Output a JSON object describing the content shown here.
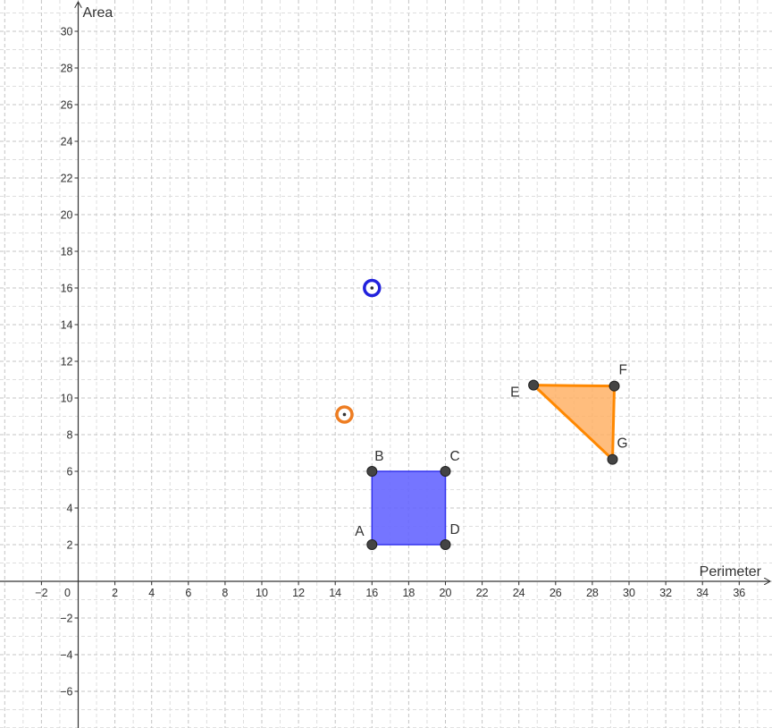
{
  "axes": {
    "x_title": "Perimeter",
    "y_title": "Area",
    "x_range": [
      -4,
      38
    ],
    "y_range": [
      -8,
      31
    ],
    "x_tick_labels": [
      {
        "value": -2,
        "text": "−2"
      },
      {
        "value": 0,
        "text": "0"
      },
      {
        "value": 2,
        "text": "2"
      },
      {
        "value": 4,
        "text": "4"
      },
      {
        "value": 6,
        "text": "6"
      },
      {
        "value": 8,
        "text": "8"
      },
      {
        "value": 10,
        "text": "10"
      },
      {
        "value": 12,
        "text": "12"
      },
      {
        "value": 14,
        "text": "14"
      },
      {
        "value": 16,
        "text": "16"
      },
      {
        "value": 18,
        "text": "18"
      },
      {
        "value": 20,
        "text": "20"
      },
      {
        "value": 22,
        "text": "22"
      },
      {
        "value": 24,
        "text": "24"
      },
      {
        "value": 26,
        "text": "26"
      },
      {
        "value": 28,
        "text": "28"
      },
      {
        "value": 30,
        "text": "30"
      },
      {
        "value": 32,
        "text": "32"
      },
      {
        "value": 34,
        "text": "34"
      },
      {
        "value": 36,
        "text": "36"
      }
    ],
    "y_tick_labels": [
      {
        "value": 30,
        "text": "30"
      },
      {
        "value": 28,
        "text": "28"
      },
      {
        "value": 26,
        "text": "26"
      },
      {
        "value": 24,
        "text": "24"
      },
      {
        "value": 22,
        "text": "22"
      },
      {
        "value": 20,
        "text": "20"
      },
      {
        "value": 18,
        "text": "18"
      },
      {
        "value": 16,
        "text": "16"
      },
      {
        "value": 14,
        "text": "14"
      },
      {
        "value": 12,
        "text": "12"
      },
      {
        "value": 10,
        "text": "10"
      },
      {
        "value": 8,
        "text": "8"
      },
      {
        "value": 6,
        "text": "6"
      },
      {
        "value": 4,
        "text": "4"
      },
      {
        "value": 2,
        "text": "2"
      },
      {
        "value": -2,
        "text": "−2"
      },
      {
        "value": -4,
        "text": "−4"
      },
      {
        "value": -6,
        "text": "−6"
      }
    ],
    "major_step": 2,
    "minor_step": 1,
    "grid": true
  },
  "square": {
    "fill_color": "#6666ff",
    "stroke_color": "#3333ee",
    "vertices": [
      {
        "label": "A",
        "x": 16,
        "y": 2
      },
      {
        "label": "B",
        "x": 16,
        "y": 6
      },
      {
        "label": "C",
        "x": 20,
        "y": 6
      },
      {
        "label": "D",
        "x": 20,
        "y": 2
      }
    ]
  },
  "triangle": {
    "fill_color": "#ffb266",
    "stroke_color": "#ff8800",
    "vertices": [
      {
        "label": "E",
        "x": 24.8,
        "y": 10.7
      },
      {
        "label": "F",
        "x": 29.2,
        "y": 10.65
      },
      {
        "label": "G",
        "x": 29.1,
        "y": 6.65
      }
    ]
  },
  "markers": [
    {
      "name": "square-perimeter-area-point",
      "x": 16,
      "y": 16,
      "color": "#2222dd"
    },
    {
      "name": "triangle-perimeter-area-point",
      "x": 14.5,
      "y": 9.1,
      "color": "#ee7d22"
    }
  ],
  "vertex_color": "#444444"
}
